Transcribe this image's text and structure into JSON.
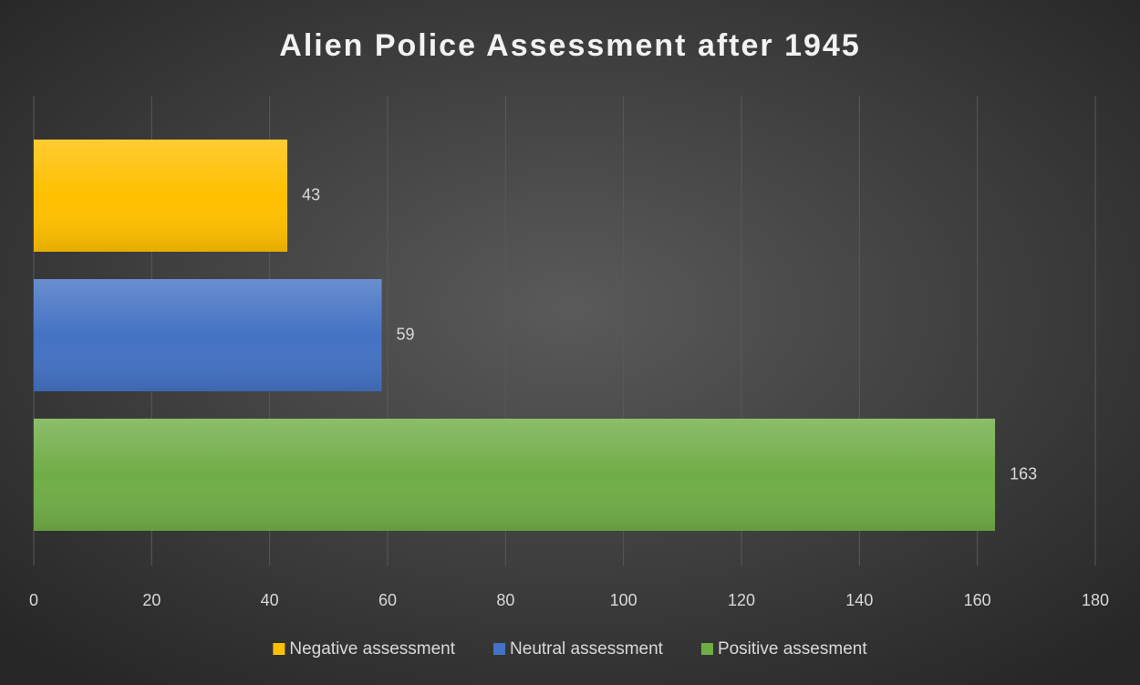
{
  "chart_data": {
    "type": "barh",
    "title": "Alien Police Assessment after 1945",
    "series": [
      {
        "name": "Negative assessment",
        "color": "#ffc000",
        "values": [
          43
        ]
      },
      {
        "name": "Neutral assessment",
        "color": "#4472c4",
        "values": [
          59
        ]
      },
      {
        "name": "Positive assesment",
        "color": "#70ad47",
        "values": [
          163
        ]
      }
    ],
    "xlim": [
      0,
      180
    ],
    "xticks": [
      0,
      20,
      40,
      60,
      80,
      100,
      120,
      140,
      160,
      180
    ],
    "grid": true,
    "legend": "bottom"
  }
}
